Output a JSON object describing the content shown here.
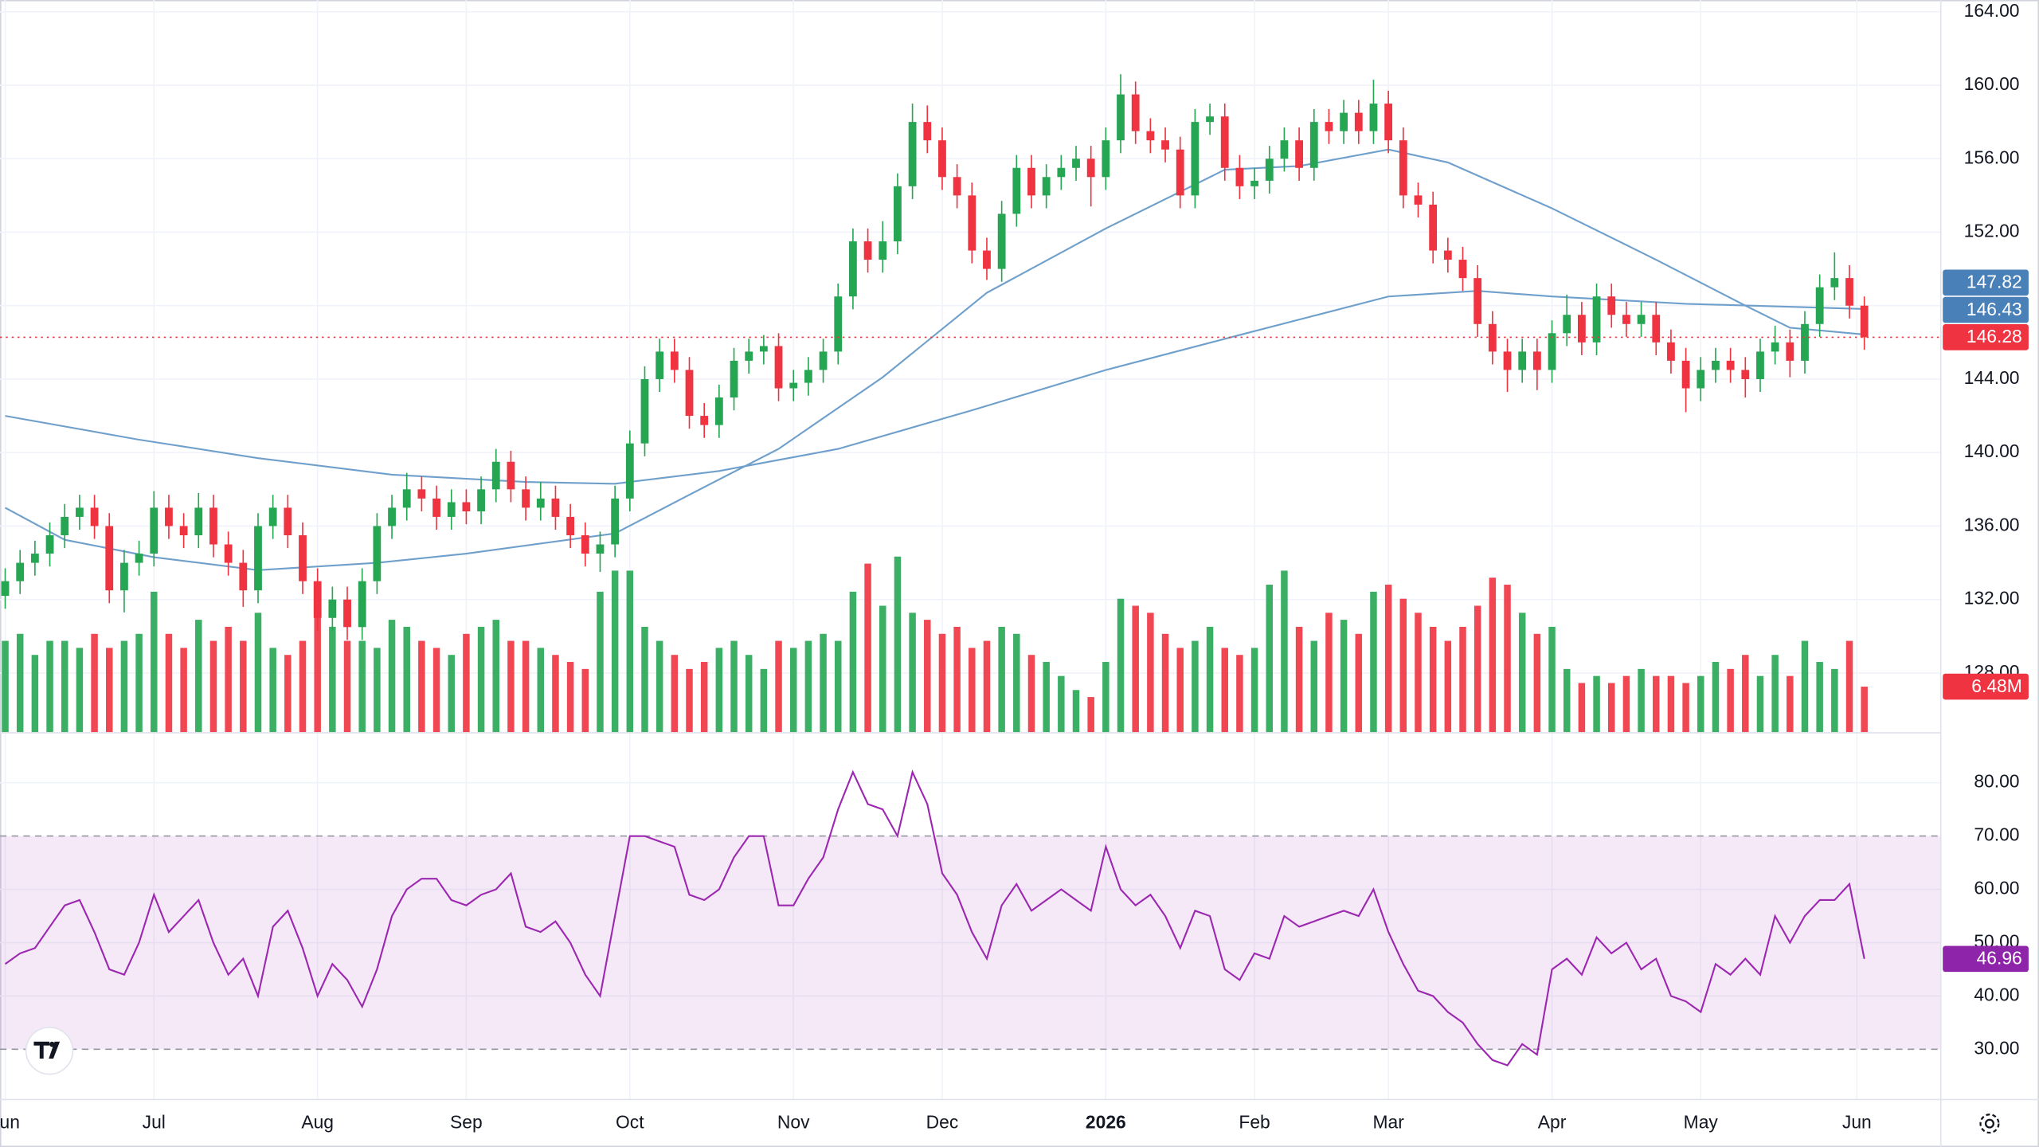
{
  "chart_data": [
    {
      "type": "candlestick",
      "xlim": [
        -0.35,
        130.1
      ],
      "xticks": [
        {
          "value": 0,
          "label": "Jun"
        },
        {
          "value": 10,
          "label": "Jul"
        },
        {
          "value": 21,
          "label": "Aug"
        },
        {
          "value": 31,
          "label": "Sep"
        },
        {
          "value": 42,
          "label": "Oct"
        },
        {
          "value": 53,
          "label": "Nov"
        },
        {
          "value": 63,
          "label": "Dec"
        },
        {
          "value": 74,
          "label": "2026"
        },
        {
          "value": 84,
          "label": "Feb"
        },
        {
          "value": 93,
          "label": "Mar"
        },
        {
          "value": 104,
          "label": "Apr"
        },
        {
          "value": 114,
          "label": "May"
        },
        {
          "value": 124.5,
          "label": "Jun"
        }
      ],
      "ylim": [
        124.78,
        164.64
      ],
      "yticks": [
        {
          "value": 128,
          "label": "128.00"
        },
        {
          "value": 132,
          "label": "132.00"
        },
        {
          "value": 136,
          "label": "136.00"
        },
        {
          "value": 140,
          "label": "140.00"
        },
        {
          "value": 144,
          "label": "144.00"
        },
        {
          "value": 148,
          "label": "148.00"
        },
        {
          "value": 152,
          "label": "152.00"
        },
        {
          "value": 156,
          "label": "156.00"
        },
        {
          "value": 160,
          "label": "160.00"
        },
        {
          "value": 164,
          "label": "164.00"
        }
      ],
      "grid": true,
      "up_color": "#26a653",
      "down_color": "#ef3340",
      "open": [
        132.2,
        133,
        134,
        134.5,
        135.5,
        136.5,
        137,
        136,
        132.5,
        134,
        134.5,
        137,
        136,
        135.5,
        137,
        135,
        134,
        132.5,
        136,
        137,
        135.5,
        133,
        131,
        132,
        130.5,
        133,
        136,
        137,
        138,
        137.5,
        136.5,
        137.3,
        136.8,
        138,
        139.5,
        138,
        137,
        137.5,
        136.5,
        135.5,
        134.5,
        135,
        137.5,
        140.5,
        144,
        145.5,
        144.5,
        142,
        141.5,
        143,
        145,
        145.5,
        145.8,
        143.5,
        143.8,
        144.5,
        145.5,
        148.5,
        151.5,
        150.5,
        151.5,
        154.5,
        158,
        157,
        155,
        154,
        151,
        150,
        153,
        155.5,
        154,
        155,
        155.5,
        156,
        155,
        157,
        159.5,
        157.5,
        157,
        156.5,
        154,
        158,
        158.3,
        155.5,
        154.5,
        154.8,
        156,
        157,
        155.5,
        158,
        157.5,
        158.5,
        157.5,
        159,
        157,
        154,
        153.5,
        151,
        150.5,
        149.5,
        147,
        145.5,
        144.5,
        145.5,
        144.5,
        146.5,
        147.5,
        146,
        148.5,
        147.5,
        147,
        147.5,
        146,
        145,
        143.5,
        144.5,
        145,
        144.5,
        144,
        145.5,
        146,
        145,
        147,
        149,
        149.5,
        148
      ],
      "high": [
        133.7,
        134.7,
        135.2,
        136.2,
        137.2,
        137.7,
        137.7,
        136.7,
        134.7,
        135.2,
        137.9,
        137.7,
        136.7,
        137.8,
        137.7,
        135.7,
        134.7,
        136.7,
        137.7,
        137.7,
        136.2,
        133.7,
        132.7,
        132.7,
        133.7,
        136.7,
        137.7,
        138.9,
        138.7,
        138.2,
        138,
        138,
        138.7,
        140.2,
        140.1,
        138.7,
        138.4,
        138.2,
        137.2,
        136.2,
        135.7,
        138.2,
        141.2,
        144.7,
        146.2,
        146.2,
        145.2,
        142.7,
        143.7,
        145.7,
        146.2,
        146.4,
        146.5,
        144.5,
        145.2,
        146.2,
        149.2,
        152.2,
        152.2,
        152.6,
        155.2,
        159,
        158.9,
        157.7,
        155.7,
        154.7,
        151.7,
        153.7,
        156.2,
        156.2,
        155.7,
        156.2,
        156.7,
        156.7,
        157.7,
        160.6,
        160.2,
        158.2,
        157.7,
        157.2,
        158.7,
        159,
        159,
        156.2,
        155.5,
        156.7,
        157.7,
        157.7,
        158.7,
        158.7,
        159.2,
        159.2,
        160.3,
        159.7,
        157.7,
        154.7,
        154.2,
        151.7,
        151.2,
        150.2,
        147.7,
        146.2,
        146.2,
        146.2,
        147.2,
        148.6,
        148.2,
        149.2,
        149.2,
        148.2,
        148.2,
        148.2,
        146.7,
        145.7,
        145.2,
        145.7,
        145.7,
        145.2,
        146.2,
        146.9,
        146.7,
        147.7,
        149.7,
        150.9,
        150.2,
        148.5
      ],
      "low": [
        131.5,
        132.3,
        133.3,
        133.8,
        134.8,
        135.8,
        135.3,
        131.8,
        131.3,
        133.3,
        133.8,
        135.3,
        134.8,
        134.8,
        134.3,
        133.3,
        131.6,
        131.8,
        135.3,
        134.8,
        132.3,
        130.3,
        130.3,
        129.8,
        129.8,
        132.3,
        135.3,
        136.3,
        136.8,
        135.8,
        135.8,
        136.1,
        136.1,
        137.3,
        137.3,
        136.3,
        136.3,
        135.8,
        134.8,
        133.8,
        133.5,
        134.3,
        136.8,
        139.8,
        143.3,
        143.8,
        141.3,
        140.8,
        140.8,
        142.3,
        144.3,
        144.8,
        142.8,
        142.8,
        143.1,
        143.8,
        144.8,
        147.8,
        149.8,
        149.8,
        150.8,
        153.8,
        156.3,
        154.3,
        153.3,
        150.3,
        149.4,
        149.3,
        152.3,
        153.3,
        153.3,
        154.3,
        154.8,
        153.4,
        154.3,
        156.3,
        156.8,
        156.3,
        155.8,
        153.3,
        153.3,
        157.3,
        154.8,
        153.8,
        153.8,
        154.1,
        155.3,
        154.8,
        154.8,
        156.8,
        156.8,
        156.8,
        156.8,
        156.3,
        153.3,
        152.8,
        150.3,
        149.8,
        148.8,
        146.3,
        144.8,
        143.3,
        143.8,
        143.4,
        143.8,
        145.8,
        145.3,
        145.3,
        146.8,
        146.3,
        146.3,
        145.3,
        144.3,
        142.2,
        142.8,
        143.8,
        143.8,
        143,
        143.3,
        144.8,
        144.1,
        144.3,
        146.3,
        148.3,
        147.3,
        145.6
      ],
      "close": [
        133,
        134,
        134.5,
        135.5,
        136.5,
        137,
        136,
        132.5,
        134,
        134.5,
        137,
        136,
        135.5,
        137,
        135,
        134,
        132.5,
        136,
        137,
        135.5,
        133,
        131,
        132,
        130.5,
        133,
        136,
        137,
        138,
        137.5,
        136.5,
        137.3,
        136.8,
        138,
        139.5,
        138,
        137,
        137.5,
        136.5,
        135.5,
        134.5,
        135,
        137.5,
        140.5,
        144,
        145.5,
        144.5,
        142,
        141.5,
        143,
        145,
        145.5,
        145.8,
        143.5,
        143.8,
        144.5,
        145.5,
        148.5,
        151.5,
        150.5,
        151.5,
        154.5,
        158,
        157,
        155,
        154,
        151,
        150,
        153,
        155.5,
        154,
        155,
        155.5,
        156,
        155,
        157,
        159.5,
        157.5,
        157,
        156.5,
        154,
        158,
        158.3,
        155.5,
        154.5,
        154.8,
        156,
        157,
        155.5,
        158,
        157.5,
        158.5,
        157.5,
        159,
        157,
        154,
        153.5,
        151,
        150.5,
        149.5,
        147,
        145.5,
        144.5,
        145.5,
        144.5,
        146.5,
        147.5,
        146,
        148.5,
        147.5,
        147,
        147.5,
        146,
        145,
        143.5,
        144.5,
        145,
        144.5,
        144,
        145.5,
        146,
        145,
        147,
        149,
        149.5,
        148,
        146.28
      ],
      "series": [
        {
          "color": "#6f9fcb",
          "x": [
            0,
            4,
            10,
            17,
            25,
            31,
            41,
            46,
            52,
            59,
            66,
            74,
            82,
            87,
            93,
            97,
            104,
            111,
            117,
            120,
            125
          ],
          "values": [
            137.0,
            135.25,
            134.3,
            133.6,
            134.0,
            134.5,
            135.6,
            137.7,
            140.2,
            144.1,
            148.7,
            152.2,
            155.4,
            155.6,
            156.5,
            155.8,
            153.3,
            150.5,
            148.0,
            146.8,
            146.43
          ]
        },
        {
          "color": "#6f9fcb",
          "x": [
            0,
            9,
            17,
            26,
            35,
            41,
            48,
            56,
            65,
            74,
            83,
            93,
            99,
            104,
            113,
            125
          ],
          "values": [
            142.0,
            140.7,
            139.7,
            138.8,
            138.4,
            138.3,
            139.0,
            140.2,
            142.3,
            144.5,
            146.4,
            148.5,
            148.8,
            148.5,
            148.1,
            147.82
          ]
        }
      ]
    },
    {
      "type": "bar",
      "values": [
        13,
        14,
        11,
        13,
        13,
        12,
        14,
        12,
        13,
        14,
        20,
        14,
        12,
        16,
        13,
        15,
        13,
        17,
        12,
        11,
        13,
        17,
        15,
        13,
        13,
        12,
        16,
        15,
        13,
        12,
        11,
        14,
        15,
        16,
        13,
        13,
        12,
        11,
        10,
        9,
        20,
        23,
        23,
        15,
        13,
        11,
        9,
        10,
        12,
        13,
        11,
        9,
        13,
        12,
        13,
        14,
        13,
        20,
        24,
        18,
        25,
        17,
        16,
        14,
        15,
        12,
        13,
        15,
        14,
        11,
        10,
        8,
        6,
        5,
        10,
        19,
        18,
        17,
        14,
        12,
        13,
        15,
        12,
        11,
        12,
        21,
        23,
        15,
        13,
        17,
        16,
        14,
        20,
        21,
        19,
        17,
        15,
        13,
        15,
        18,
        22,
        21,
        17,
        14,
        15,
        9,
        7,
        8,
        7,
        8,
        9,
        8,
        8,
        7,
        8,
        10,
        9,
        11,
        8,
        11,
        8,
        13,
        10,
        9,
        13,
        6.48
      ],
      "value_labels": [
        null,
        null,
        null,
        null,
        null,
        null,
        null,
        null,
        null,
        null,
        null,
        null,
        null,
        null,
        null,
        null,
        null,
        null,
        null,
        null,
        null,
        null,
        null,
        null,
        null,
        null,
        null,
        null,
        null,
        null,
        null,
        null,
        null,
        null,
        null,
        null,
        null,
        null,
        null,
        null,
        null,
        null,
        null,
        null,
        null,
        null,
        null,
        null,
        null,
        null,
        null,
        null,
        null,
        null,
        null,
        null,
        null,
        null,
        null,
        null,
        null,
        null,
        null,
        null,
        null,
        null,
        null,
        null,
        null,
        null,
        null,
        null,
        null,
        null,
        null,
        null,
        null,
        null,
        null,
        null,
        null,
        null,
        null,
        null,
        null,
        null,
        null,
        null,
        null,
        null,
        null,
        null,
        null,
        null,
        null,
        null,
        null,
        null,
        null,
        null,
        null,
        null,
        null,
        null,
        null,
        null,
        null,
        null,
        null,
        null,
        null,
        null,
        null,
        null,
        null,
        null,
        null,
        null,
        null,
        null,
        null,
        null,
        null,
        null,
        null,
        "6.48M"
      ]
    },
    {
      "type": "line",
      "color": "#9c27b0",
      "ylim": [
        20.7,
        89.0
      ],
      "yticks": [
        {
          "value": 30,
          "label": "30.00"
        },
        {
          "value": 40,
          "label": "40.00"
        },
        {
          "value": 50,
          "label": "50.00"
        },
        {
          "value": 60,
          "label": "60.00"
        },
        {
          "value": 70,
          "label": "70.00"
        },
        {
          "value": 80,
          "label": "80.00"
        }
      ],
      "band": [
        30,
        70
      ],
      "values": [
        46,
        48,
        49,
        53,
        57,
        58,
        52,
        45,
        44,
        50,
        59,
        52,
        55,
        58,
        50,
        44,
        47,
        40,
        53,
        56,
        49,
        40,
        46,
        43,
        38,
        45,
        55,
        60,
        62,
        62,
        58,
        57,
        59,
        60,
        63,
        53,
        52,
        54,
        50,
        44,
        40,
        55,
        70,
        70,
        69,
        68,
        59,
        58,
        60,
        66,
        70,
        70,
        57,
        57,
        62,
        66,
        75,
        82,
        76,
        75,
        70,
        82,
        76,
        63,
        59,
        52,
        47,
        57,
        61,
        56,
        58,
        60,
        58,
        56,
        68,
        60,
        57,
        59,
        55,
        49,
        56,
        55,
        45,
        43,
        48,
        47,
        55,
        53,
        54,
        55,
        56,
        55,
        60,
        52,
        46,
        41,
        40,
        37,
        35,
        31,
        28,
        27,
        31,
        29,
        45,
        47,
        44,
        51,
        48,
        50,
        45,
        47,
        40,
        39,
        37,
        46,
        44,
        47,
        44,
        55,
        50,
        55,
        58,
        58,
        61,
        46.96
      ]
    }
  ]
}
